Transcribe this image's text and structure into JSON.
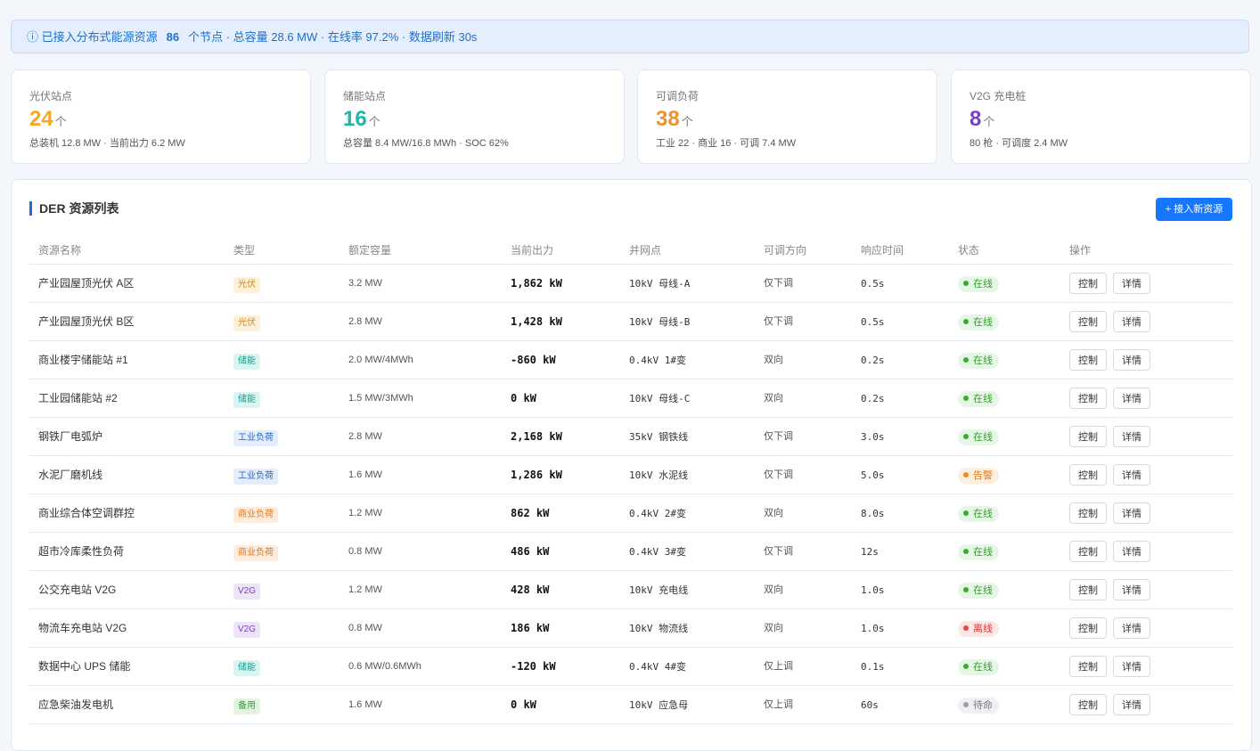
{
  "banner": {
    "prefix": "ⓘ 已接入分布式能源资源",
    "count": 86,
    "suffix": "个节点 · 总容量 28.6 MW · 在线率 97.2% · 数据刷新 30s"
  },
  "cards": [
    {
      "label": "光伏站点",
      "value": 24,
      "unit": "个",
      "detail": "总装机 12.8 MW · 当前出力 6.2 MW"
    },
    {
      "label": "储能站点",
      "value": 16,
      "unit": "个",
      "detail": "总容量 8.4 MW/16.8 MWh · SOC 62%"
    },
    {
      "label": "可调负荷",
      "value": 38,
      "unit": "个",
      "detail": "工业 22 · 商业 16 · 可调 7.4 MW"
    },
    {
      "label": "V2G 充电桩",
      "value": 8,
      "unit": "个",
      "detail": "80 枪 · 可调度 2.4 MW"
    }
  ],
  "table": {
    "title": "DER 资源列表",
    "button": "+ 接入新资源",
    "headers": [
      "资源名称",
      "类型",
      "额定容量",
      "当前出力",
      "并网点",
      "可调方向",
      "响应时间",
      "状态",
      "操作"
    ],
    "rows": [
      [
        "产业园屋顶光伏 A区",
        "光伏",
        "3.2 MW",
        "1,862 kW",
        "10kV 母线-A",
        "仅下调",
        "0.5s",
        "在线",
        "控制",
        "详情"
      ],
      [
        "产业园屋顶光伏 B区",
        "光伏",
        "2.8 MW",
        "1,428 kW",
        "10kV 母线-B",
        "仅下调",
        "0.5s",
        "在线",
        "控制",
        "详情"
      ],
      [
        "商业楼宇储能站 #1",
        "储能",
        "2.0 MW/4MWh",
        "-860 kW",
        "0.4kV 1#变",
        "双向",
        "0.2s",
        "在线",
        "控制",
        "详情"
      ],
      [
        "工业园储能站 #2",
        "储能",
        "1.5 MW/3MWh",
        "0 kW",
        "10kV 母线-C",
        "双向",
        "0.2s",
        "在线",
        "控制",
        "详情"
      ],
      [
        "钢铁厂电弧炉",
        "工业负荷",
        "2.8 MW",
        "2,168 kW",
        "35kV 钢铁线",
        "仅下调",
        "3.0s",
        "在线",
        "控制",
        "详情"
      ],
      [
        "水泥厂磨机线",
        "工业负荷",
        "1.6 MW",
        "1,286 kW",
        "10kV 水泥线",
        "仅下调",
        "5.0s",
        "告警",
        "控制",
        "详情"
      ],
      [
        "商业综合体空调群控",
        "商业负荷",
        "1.2 MW",
        "862 kW",
        "0.4kV 2#变",
        "双向",
        "8.0s",
        "在线",
        "控制",
        "详情"
      ],
      [
        "超市冷库柔性负荷",
        "商业负荷",
        "0.8 MW",
        "486 kW",
        "0.4kV 3#变",
        "仅下调",
        "12s",
        "在线",
        "控制",
        "详情"
      ],
      [
        "公交充电站 V2G",
        "V2G",
        "1.2 MW",
        "428 kW",
        "10kV 充电线",
        "双向",
        "1.0s",
        "在线",
        "控制",
        "详情"
      ],
      [
        "物流车充电站 V2G",
        "V2G",
        "0.8 MW",
        "186 kW",
        "10kV 物流线",
        "双向",
        "1.0s",
        "离线",
        "控制",
        "详情"
      ],
      [
        "数据中心 UPS 储能",
        "储能",
        "0.6 MW/0.6MWh",
        "-120 kW",
        "0.4kV 4#变",
        "仅上调",
        "0.1s",
        "在线",
        "控制",
        "详情"
      ],
      [
        "应急柴油发电机",
        "备用",
        "1.6 MW",
        "0 kW",
        "10kV 应急母",
        "仅上调",
        "60s",
        "待命",
        "控制",
        "详情"
      ]
    ]
  }
}
